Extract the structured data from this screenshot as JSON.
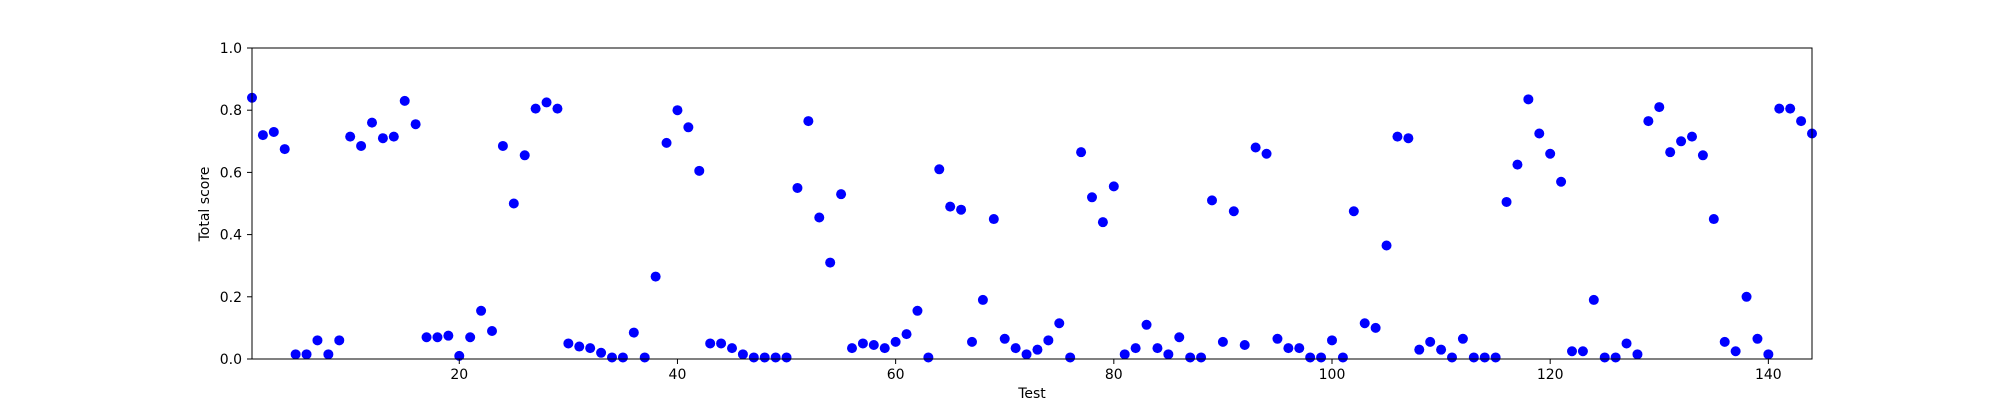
{
  "chart_data": {
    "type": "scatter",
    "title": "",
    "xlabel": "Test",
    "ylabel": "Total score",
    "xlim": [
      1,
      144
    ],
    "ylim": [
      0,
      1
    ],
    "xticks": [
      20,
      40,
      60,
      80,
      100,
      120,
      140
    ],
    "xtick_labels": [
      "20",
      "40",
      "60",
      "80",
      "100",
      "120",
      "140"
    ],
    "yticks": [
      0,
      0.2,
      0.4,
      0.6,
      0.8,
      1
    ],
    "ytick_labels": [
      "0.0",
      "0.2",
      "0.4",
      "0.6",
      "0.8",
      "1.0"
    ],
    "grid": false,
    "marker_color": "#0000ff",
    "x": [
      1,
      2,
      3,
      4,
      5,
      6,
      7,
      8,
      9,
      10,
      11,
      12,
      13,
      14,
      15,
      16,
      17,
      18,
      19,
      20,
      21,
      22,
      23,
      24,
      25,
      26,
      27,
      28,
      29,
      30,
      31,
      32,
      33,
      34,
      35,
      36,
      37,
      38,
      39,
      40,
      41,
      42,
      43,
      44,
      45,
      46,
      47,
      48,
      49,
      50,
      51,
      52,
      53,
      54,
      55,
      56,
      57,
      58,
      59,
      60,
      61,
      62,
      63,
      64,
      65,
      66,
      67,
      68,
      69,
      70,
      71,
      72,
      73,
      74,
      75,
      76,
      77,
      78,
      79,
      80,
      81,
      82,
      83,
      84,
      85,
      86,
      87,
      88,
      89,
      90,
      91,
      92,
      93,
      94,
      95,
      96,
      97,
      98,
      99,
      100,
      101,
      102,
      103,
      104,
      105,
      106,
      107,
      108,
      109,
      110,
      111,
      112,
      113,
      114,
      115,
      116,
      117,
      118,
      119,
      120,
      121,
      122,
      123,
      124,
      125,
      126,
      127,
      128,
      129,
      130,
      131,
      132,
      133,
      134,
      135,
      136,
      137,
      138,
      139,
      140,
      141,
      142,
      143,
      144
    ],
    "y": [
      0.84,
      0.72,
      0.73,
      0.675,
      0.015,
      0.015,
      0.06,
      0.015,
      0.06,
      0.715,
      0.685,
      0.76,
      0.71,
      0.715,
      0.83,
      0.755,
      0.07,
      0.07,
      0.075,
      0.01,
      0.07,
      0.155,
      0.09,
      0.685,
      0.5,
      0.655,
      0.805,
      0.825,
      0.805,
      0.05,
      0.04,
      0.035,
      0.02,
      0.005,
      0.005,
      0.085,
      0.005,
      0.265,
      0.695,
      0.8,
      0.745,
      0.605,
      0.05,
      0.05,
      0.035,
      0.015,
      0.005,
      0.005,
      0.005,
      0.005,
      0.55,
      0.765,
      0.455,
      0.31,
      0.53,
      0.035,
      0.05,
      0.045,
      0.035,
      0.055,
      0.08,
      0.155,
      0.005,
      0.61,
      0.49,
      0.48,
      0.055,
      0.19,
      0.45,
      0.065,
      0.035,
      0.015,
      0.03,
      0.06,
      0.115,
      0.005,
      0.665,
      0.52,
      0.44,
      0.555,
      0.015,
      0.035,
      0.11,
      0.035,
      0.015,
      0.07,
      0.005,
      0.005,
      0.51,
      0.055,
      0.475,
      0.045,
      0.68,
      0.66,
      0.065,
      0.035,
      0.035,
      0.005,
      0.005,
      0.06,
      0.005,
      0.475,
      0.115,
      0.1,
      0.365,
      0.715,
      0.71,
      0.03,
      0.055,
      0.03,
      0.005,
      0.065,
      0.005,
      0.005,
      0.005,
      0.505,
      0.625,
      0.835,
      0.725,
      0.66,
      0.57,
      0.025,
      0.025,
      0.19,
      0.005,
      0.005,
      0.05,
      0.015,
      0.765,
      0.81,
      0.665,
      0.7,
      0.715,
      0.655,
      0.45,
      0.055,
      0.025,
      0.2,
      0.065,
      0.015,
      0.805,
      0.805,
      0.765,
      0.725
    ]
  }
}
